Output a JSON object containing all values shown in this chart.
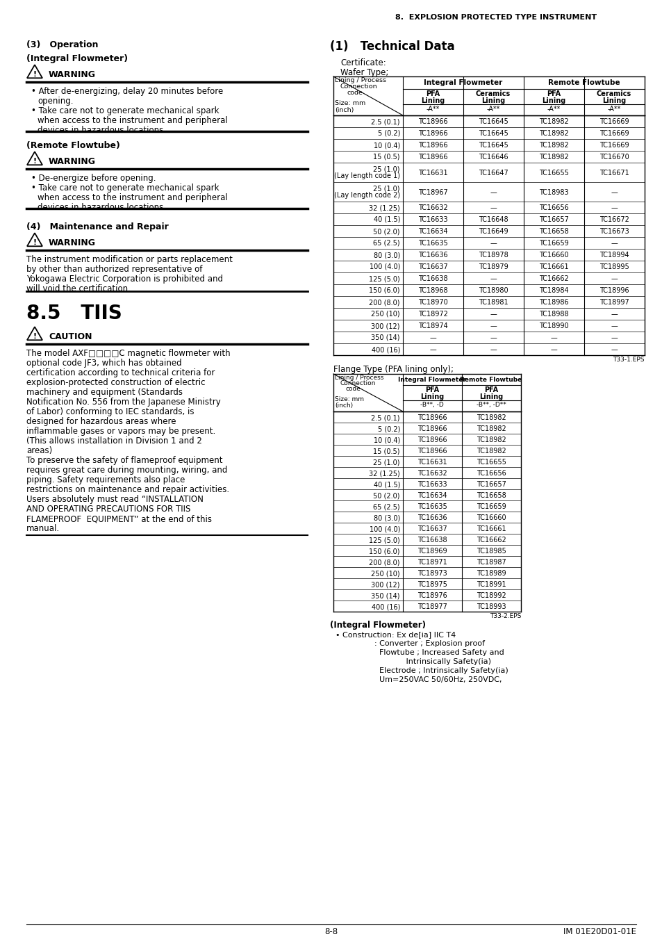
{
  "page_header": "8.  EXPLOSION PROTECTED TYPE INSTRUMENT",
  "left": {
    "sec3": "(3)   Operation",
    "intfl": "(Integral Flowmeter)",
    "warn1": "WARNING",
    "w1b1a": "After de-energizing, delay 20 minutes before",
    "w1b1b": "opening.",
    "w1b2a": "Take care not to generate mechanical spark",
    "w1b2b": "when access to the instrument and peripheral",
    "w1b2c": "devices in hazardous locations.",
    "remfl": "(Remote Flowtube)",
    "warn2": "WARNING",
    "w2b1": "De-energize before opening.",
    "w2b2a": "Take care not to generate mechanical spark",
    "w2b2b": "when access to the instrument and peripheral",
    "w2b2c": "devices in hazardous locations.",
    "sec4": "(4)   Maintenance and Repair",
    "warn3": "WARNING",
    "w3t1": "The instrument modification or parts replacement",
    "w3t2": "by other than authorized representative of",
    "w3t3": "Yokogawa Electric Corporation is prohibited and",
    "w3t4": "will void the certification.",
    "sec85": "8.5   TIIS",
    "caution": "CAUTION",
    "cp1a": "The model AXF□□□□C magnetic flowmeter with",
    "cp1b": "optional code JF3, which has obtained",
    "cp1c": "certification according to technical criteria for",
    "cp1d": "explosion-protected construction of electric",
    "cp1e": "machinery and equipment (Standards",
    "cp1f": "Notification No. 556 from the Japanese Ministry",
    "cp1g": "of Labor) conforming to IEC standards, is",
    "cp1h": "designed for hazardous areas where",
    "cp1i": "inflammable gases or vapors may be present.",
    "cp1j": "(This allows installation in Division 1 and 2",
    "cp1k": "areas)",
    "cp2a": "To preserve the safety of flameproof equipment",
    "cp2b": "requires great care during mounting, wiring, and",
    "cp2c": "piping. Safety requirements also place",
    "cp2d": "restrictions on maintenance and repair activities.",
    "cp2e": "Users absolutely must read “INSTALLATION",
    "cp2f": "AND OPERATING PRECAUTIONS FOR TIIS",
    "cp2g": "FLAMEPROOF  EQUIPMENT” at the end of this",
    "cp2h": "manual."
  },
  "right": {
    "tech": "(1)   Technical Data",
    "cert": "Certificate:",
    "wafer": "Wafer Type;",
    "t1note": "T33-1.EPS",
    "wafer_rows": [
      [
        "2.5 (0.1)",
        "TC18966",
        "TC16645",
        "TC18982",
        "TC16669"
      ],
      [
        "5 (0.2)",
        "TC18966",
        "TC16645",
        "TC18982",
        "TC16669"
      ],
      [
        "10 (0.4)",
        "TC18966",
        "TC16645",
        "TC18982",
        "TC16669"
      ],
      [
        "15 (0.5)",
        "TC18966",
        "TC16646",
        "TC18982",
        "TC16670"
      ],
      [
        "25 (1.0)\n(Lay length code 1)",
        "TC16631",
        "TC16647",
        "TC16655",
        "TC16671"
      ],
      [
        "25 (1.0)\n(Lay length code 2)",
        "TC18967",
        "—",
        "TC18983",
        "—"
      ],
      [
        "32 (1.25)",
        "TC16632",
        "—",
        "TC16656",
        "—"
      ],
      [
        "40 (1.5)",
        "TC16633",
        "TC16648",
        "TC16657",
        "TC16672"
      ],
      [
        "50 (2.0)",
        "TC16634",
        "TC16649",
        "TC16658",
        "TC16673"
      ],
      [
        "65 (2.5)",
        "TC16635",
        "—",
        "TC16659",
        "—"
      ],
      [
        "80 (3.0)",
        "TC16636",
        "TC18978",
        "TC16660",
        "TC18994"
      ],
      [
        "100 (4.0)",
        "TC16637",
        "TC18979",
        "TC16661",
        "TC18995"
      ],
      [
        "125 (5.0)",
        "TC16638",
        "—",
        "TC16662",
        "—"
      ],
      [
        "150 (6.0)",
        "TC18968",
        "TC18980",
        "TC18984",
        "TC18996"
      ],
      [
        "200 (8.0)",
        "TC18970",
        "TC18981",
        "TC18986",
        "TC18997"
      ],
      [
        "250 (10)",
        "TC18972",
        "—",
        "TC18988",
        "—"
      ],
      [
        "300 (12)",
        "TC18974",
        "—",
        "TC18990",
        "—"
      ],
      [
        "350 (14)",
        "—",
        "—",
        "—",
        "—"
      ],
      [
        "400 (16)",
        "—",
        "—",
        "—",
        "—"
      ]
    ],
    "flange_label": "Flange Type (PFA lining only);",
    "t2note": "T33-2.EPS",
    "flange_rows": [
      [
        "2.5 (0.1)",
        "TC18966",
        "TC18982"
      ],
      [
        "5 (0.2)",
        "TC18966",
        "TC18982"
      ],
      [
        "10 (0.4)",
        "TC18966",
        "TC18982"
      ],
      [
        "15 (0.5)",
        "TC18966",
        "TC18982"
      ],
      [
        "25 (1.0)",
        "TC16631",
        "TC16655"
      ],
      [
        "32 (1.25)",
        "TC16632",
        "TC16656"
      ],
      [
        "40 (1.5)",
        "TC16633",
        "TC16657"
      ],
      [
        "50 (2.0)",
        "TC16634",
        "TC16658"
      ],
      [
        "65 (2.5)",
        "TC16635",
        "TC16659"
      ],
      [
        "80 (3.0)",
        "TC16636",
        "TC16660"
      ],
      [
        "100 (4.0)",
        "TC16637",
        "TC16661"
      ],
      [
        "125 (5.0)",
        "TC16638",
        "TC16662"
      ],
      [
        "150 (6.0)",
        "TC18969",
        "TC18985"
      ],
      [
        "200 (8.0)",
        "TC18971",
        "TC18987"
      ],
      [
        "250 (10)",
        "TC18973",
        "TC18989"
      ],
      [
        "300 (12)",
        "TC18975",
        "TC18991"
      ],
      [
        "350 (14)",
        "TC18976",
        "TC18992"
      ],
      [
        "400 (16)",
        "TC18977",
        "TC18993"
      ]
    ],
    "int_fl": "(Integral Flowmeter)",
    "ib1": "• Construction: Ex de[ia] IIC T4",
    "ib2": "                : Converter ; Explosion proof",
    "ib3": "                  Flowtube ; Increased Safety and",
    "ib4": "                             Intrinsically Safety(ia)",
    "ib5": "                  Electrode ; Intrinsically Safety(ia)",
    "ib6": "                  Um=250VAC 50/60Hz, 250VDC,"
  },
  "footer_l": "8-8",
  "footer_r": "IM 01E20D01-01E"
}
